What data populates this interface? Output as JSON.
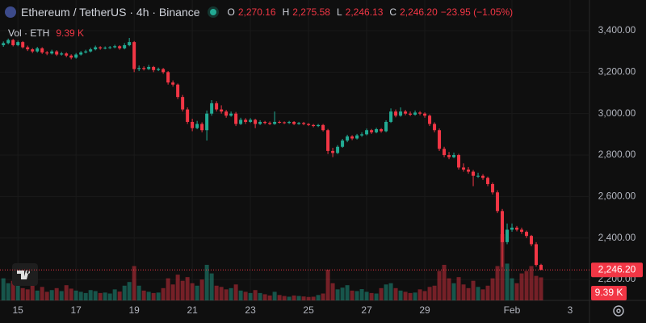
{
  "chart_data": {
    "type": "candlestick",
    "title": "Ethereum / TetherUS · 4h · Binance",
    "ohlc_labels": [
      "O",
      "H",
      "L",
      "C"
    ],
    "last_labels": [
      "2,270.16",
      "2,275.58",
      "2,246.13",
      "2,246.20"
    ],
    "change": "−23.95 (−1.05%)",
    "volume_title": "Vol · ETH",
    "volume_label": "9.39 K",
    "up_color": "#22ab94",
    "down_color": "#f23645",
    "grid": true,
    "xlim": [
      -3.7,
      118
    ],
    "xticks": [
      {
        "value": 0,
        "label": "15"
      },
      {
        "value": 12,
        "label": "17"
      },
      {
        "value": 24,
        "label": "19"
      },
      {
        "value": 36,
        "label": "21"
      },
      {
        "value": 48,
        "label": "23"
      },
      {
        "value": 60,
        "label": "25"
      },
      {
        "value": 72,
        "label": "27"
      },
      {
        "value": 84,
        "label": "29"
      },
      {
        "value": 102,
        "label": "Feb"
      },
      {
        "value": 114,
        "label": "3"
      }
    ],
    "ylim": [
      2099,
      3548
    ],
    "yticks": [
      {
        "value": 2200,
        "label": "2,200.00"
      },
      {
        "value": 2400,
        "label": "2,400.00"
      },
      {
        "value": 2600,
        "label": "2,600.00"
      },
      {
        "value": 2800,
        "label": "2,800.00"
      },
      {
        "value": 3000,
        "label": "3,000.00"
      },
      {
        "value": 3200,
        "label": "3,200.00"
      },
      {
        "value": 3400,
        "label": "3,400.00"
      }
    ],
    "x": [
      -3,
      -2,
      -1,
      0,
      1,
      2,
      3,
      4,
      5,
      6,
      7,
      8,
      9,
      10,
      11,
      12,
      13,
      14,
      15,
      16,
      17,
      18,
      19,
      20,
      21,
      22,
      23,
      24,
      25,
      26,
      27,
      28,
      29,
      30,
      31,
      32,
      33,
      34,
      35,
      36,
      37,
      38,
      39,
      40,
      41,
      42,
      43,
      44,
      45,
      46,
      47,
      48,
      49,
      50,
      51,
      52,
      53,
      54,
      55,
      56,
      57,
      58,
      59,
      60,
      61,
      62,
      63,
      64,
      65,
      66,
      67,
      68,
      69,
      70,
      71,
      72,
      73,
      74,
      75,
      76,
      77,
      78,
      79,
      80,
      81,
      82,
      83,
      84,
      85,
      86,
      87,
      88,
      89,
      90,
      91,
      92,
      93,
      94,
      95,
      96,
      97,
      98,
      99,
      100,
      101,
      102,
      103,
      104,
      105,
      106,
      107,
      108
    ],
    "candles": [
      [
        3330,
        3348,
        3322,
        3340
      ],
      [
        3340,
        3362,
        3334,
        3355
      ],
      [
        3355,
        3360,
        3324,
        3330
      ],
      [
        3330,
        3352,
        3325,
        3345
      ],
      [
        3345,
        3350,
        3314,
        3320
      ],
      [
        3320,
        3328,
        3302,
        3310
      ],
      [
        3310,
        3316,
        3292,
        3300
      ],
      [
        3300,
        3322,
        3294,
        3315
      ],
      [
        3315,
        3320,
        3288,
        3295
      ],
      [
        3295,
        3302,
        3282,
        3290
      ],
      [
        3290,
        3308,
        3285,
        3300
      ],
      [
        3300,
        3306,
        3278,
        3285
      ],
      [
        3285,
        3298,
        3280,
        3290
      ],
      [
        3290,
        3296,
        3272,
        3280
      ],
      [
        3280,
        3286,
        3262,
        3270
      ],
      [
        3270,
        3292,
        3265,
        3285
      ],
      [
        3285,
        3302,
        3280,
        3295
      ],
      [
        3295,
        3308,
        3290,
        3300
      ],
      [
        3300,
        3318,
        3295,
        3310
      ],
      [
        3310,
        3328,
        3305,
        3320
      ],
      [
        3320,
        3325,
        3308,
        3315
      ],
      [
        3315,
        3324,
        3310,
        3318
      ],
      [
        3318,
        3326,
        3312,
        3320
      ],
      [
        3320,
        3332,
        3315,
        3325
      ],
      [
        3325,
        3330,
        3308,
        3315
      ],
      [
        3315,
        3340,
        3310,
        3330
      ],
      [
        3330,
        3365,
        3325,
        3345
      ],
      [
        3345,
        3350,
        3200,
        3215
      ],
      [
        3215,
        3232,
        3205,
        3220
      ],
      [
        3220,
        3228,
        3208,
        3215
      ],
      [
        3215,
        3235,
        3210,
        3225
      ],
      [
        3225,
        3230,
        3200,
        3210
      ],
      [
        3210,
        3222,
        3205,
        3215
      ],
      [
        3215,
        3220,
        3192,
        3200
      ],
      [
        3200,
        3205,
        3140,
        3150
      ],
      [
        3150,
        3160,
        3130,
        3140
      ],
      [
        3140,
        3145,
        3070,
        3080
      ],
      [
        3080,
        3090,
        3010,
        3020
      ],
      [
        3020,
        3030,
        2950,
        2960
      ],
      [
        2960,
        2975,
        2915,
        2930
      ],
      [
        2930,
        2965,
        2925,
        2950
      ],
      [
        2950,
        2958,
        2910,
        2920
      ],
      [
        2920,
        3015,
        2870,
        3000
      ],
      [
        3000,
        3065,
        2990,
        3050
      ],
      [
        3050,
        3060,
        3010,
        3020
      ],
      [
        3020,
        3040,
        3000,
        3010
      ],
      [
        3010,
        3018,
        2980,
        2990
      ],
      [
        2990,
        3010,
        2985,
        3000
      ],
      [
        3000,
        3008,
        2940,
        2950
      ],
      [
        2950,
        2980,
        2945,
        2970
      ],
      [
        2970,
        2978,
        2950,
        2960
      ],
      [
        2960,
        2978,
        2955,
        2970
      ],
      [
        2970,
        2975,
        2930,
        2950
      ],
      [
        2950,
        2968,
        2945,
        2960
      ],
      [
        2960,
        2965,
        2948,
        2955
      ],
      [
        2955,
        2962,
        2945,
        2950
      ],
      [
        2950,
        3010,
        2946,
        2960
      ],
      [
        2960,
        2966,
        2952,
        2958
      ],
      [
        2958,
        2962,
        2950,
        2955
      ],
      [
        2955,
        2965,
        2950,
        2960
      ],
      [
        2960,
        2964,
        2945,
        2950
      ],
      [
        2950,
        2960,
        2946,
        2955
      ],
      [
        2955,
        2960,
        2944,
        2950
      ],
      [
        2950,
        2954,
        2940,
        2945
      ],
      [
        2945,
        2950,
        2934,
        2940
      ],
      [
        2940,
        2950,
        2935,
        2945
      ],
      [
        2945,
        2950,
        2914,
        2920
      ],
      [
        2920,
        2926,
        2805,
        2820
      ],
      [
        2820,
        2835,
        2790,
        2810
      ],
      [
        2810,
        2848,
        2805,
        2840
      ],
      [
        2840,
        2878,
        2835,
        2870
      ],
      [
        2870,
        2898,
        2862,
        2890
      ],
      [
        2890,
        2896,
        2872,
        2880
      ],
      [
        2880,
        2902,
        2875,
        2895
      ],
      [
        2895,
        2910,
        2888,
        2900
      ],
      [
        2900,
        2928,
        2895,
        2920
      ],
      [
        2920,
        2926,
        2902,
        2910
      ],
      [
        2910,
        2932,
        2905,
        2925
      ],
      [
        2925,
        2930,
        2908,
        2915
      ],
      [
        2915,
        2968,
        2910,
        2960
      ],
      [
        2960,
        3025,
        2955,
        3010
      ],
      [
        3010,
        3020,
        2982,
        2990
      ],
      [
        2990,
        3030,
        2985,
        3010
      ],
      [
        3010,
        3018,
        2992,
        3000
      ],
      [
        3000,
        3010,
        2988,
        2995
      ],
      [
        2995,
        3015,
        2990,
        3005
      ],
      [
        3005,
        3012,
        2992,
        3000
      ],
      [
        3000,
        3006,
        2980,
        2990
      ],
      [
        2990,
        2996,
        2940,
        2950
      ],
      [
        2950,
        2958,
        2910,
        2920
      ],
      [
        2920,
        2928,
        2820,
        2830
      ],
      [
        2830,
        2840,
        2790,
        2800
      ],
      [
        2800,
        2815,
        2780,
        2790
      ],
      [
        2790,
        2812,
        2785,
        2800
      ],
      [
        2800,
        2806,
        2730,
        2740
      ],
      [
        2740,
        2760,
        2720,
        2730
      ],
      [
        2730,
        2742,
        2710,
        2720
      ],
      [
        2720,
        2728,
        2650,
        2700
      ],
      [
        2700,
        2715,
        2690,
        2700
      ],
      [
        2700,
        2708,
        2680,
        2690
      ],
      [
        2690,
        2696,
        2650,
        2660
      ],
      [
        2660,
        2668,
        2610,
        2620
      ],
      [
        2620,
        2630,
        2520,
        2530
      ],
      [
        2530,
        2540,
        2260,
        2380
      ],
      [
        2380,
        2470,
        2370,
        2440
      ],
      [
        2440,
        2470,
        2430,
        2450
      ],
      [
        2450,
        2458,
        2432,
        2440
      ],
      [
        2440,
        2450,
        2420,
        2430
      ],
      [
        2430,
        2436,
        2400,
        2410
      ],
      [
        2410,
        2415,
        2360,
        2370
      ],
      [
        2370,
        2380,
        2262,
        2270.16
      ],
      [
        2270.16,
        2275.58,
        2246.13,
        2246.2
      ]
    ],
    "volumes": [
      9000,
      7000,
      8000,
      6500,
      5000,
      4500,
      6000,
      4000,
      5500,
      3500,
      4200,
      5000,
      3800,
      6200,
      4800,
      4000,
      3500,
      3000,
      4200,
      3800,
      3000,
      3200,
      2800,
      4500,
      3600,
      6000,
      7500,
      14000,
      6000,
      4000,
      3500,
      3000,
      3200,
      5000,
      9000,
      6500,
      10500,
      8000,
      9500,
      7000,
      6000,
      8500,
      14500,
      11000,
      6000,
      5500,
      4500,
      5000,
      6500,
      4000,
      3500,
      3000,
      4200,
      3000,
      2500,
      2000,
      3500,
      2200,
      1800,
      1500,
      2000,
      1800,
      1600,
      1400,
      1500,
      2200,
      2800,
      12500,
      7000,
      4500,
      5200,
      6200,
      4000,
      3800,
      4600,
      3500,
      3000,
      2800,
      5000,
      6500,
      7000,
      5000,
      4000,
      3500,
      3000,
      3200,
      4500,
      3800,
      5500,
      6000,
      12000,
      14500,
      9000,
      7000,
      9500,
      6500,
      5000,
      8000,
      5500,
      4500,
      6000,
      9000,
      14000,
      27000,
      15000,
      9000,
      7000,
      11000,
      12000,
      14000,
      10000,
      9390
    ]
  }
}
